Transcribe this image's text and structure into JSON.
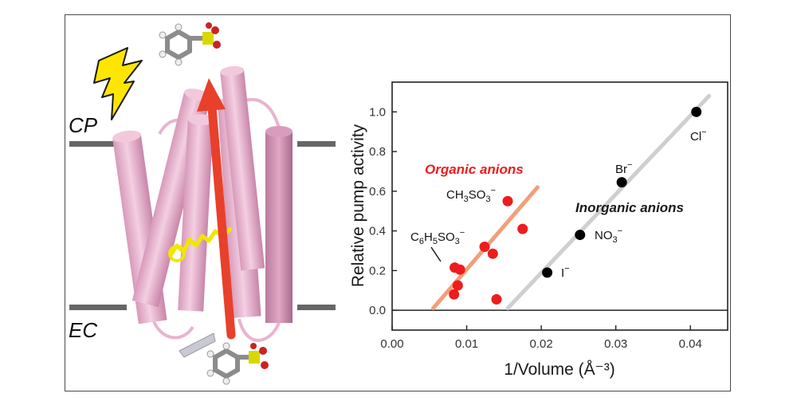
{
  "illustration": {
    "cp_label": "CP",
    "ec_label": "EC",
    "helix_color": "#e8b4cf",
    "arrow_color": "#e8402a",
    "bolt_color": "#ffe600"
  },
  "chart_data": {
    "type": "scatter",
    "xlabel": "1/Volume (Å⁻³)",
    "ylabel": "Relative pump activity",
    "xlim": [
      0.0,
      0.045
    ],
    "ylim": [
      -0.1,
      1.15
    ],
    "x_ticks": [
      "0.00",
      "0.01",
      "0.02",
      "0.03",
      "0.04"
    ],
    "y_ticks": [
      "0.0",
      "0.2",
      "0.4",
      "0.6",
      "0.8",
      "1.0"
    ],
    "y_tick_values": [
      0.0,
      0.2,
      0.4,
      0.6,
      0.8,
      1.0
    ],
    "x_tick_values": [
      0.0,
      0.01,
      0.02,
      0.03,
      0.04
    ],
    "zero_line": true,
    "series": [
      {
        "name": "Organic anions",
        "color": "#ee1c1c",
        "fit_color": "#f0a07a",
        "fit": {
          "x1": 0.0055,
          "y1": 0.01,
          "x2": 0.0195,
          "y2": 0.62
        },
        "points": [
          {
            "x": 0.0083,
            "y": 0.08
          },
          {
            "x": 0.0084,
            "y": 0.215
          },
          {
            "x": 0.0088,
            "y": 0.125
          },
          {
            "x": 0.0091,
            "y": 0.205
          },
          {
            "x": 0.0124,
            "y": 0.32
          },
          {
            "x": 0.0135,
            "y": 0.285
          },
          {
            "x": 0.014,
            "y": 0.055
          },
          {
            "x": 0.0155,
            "y": 0.55
          },
          {
            "x": 0.0175,
            "y": 0.41
          }
        ]
      },
      {
        "name": "Inorganic anions",
        "color": "#000000",
        "fit_color": "#cfcfcf",
        "fit": {
          "x1": 0.0155,
          "y1": 0.01,
          "x2": 0.0425,
          "y2": 1.08
        },
        "points": [
          {
            "x": 0.0208,
            "y": 0.19
          },
          {
            "x": 0.0252,
            "y": 0.38
          },
          {
            "x": 0.0308,
            "y": 0.645
          },
          {
            "x": 0.0408,
            "y": 1.0
          }
        ]
      }
    ],
    "point_labels": {
      "ch3so3": {
        "main": "CH",
        "sub1": "3",
        "mid": "SO",
        "sub2": "3",
        "sup": "−"
      },
      "c6h5so3": {
        "main": "C",
        "sub1": "6",
        "mid": "H",
        "sub2": "5",
        "end": "SO",
        "sub3": "3",
        "sup": "−"
      },
      "i": {
        "main": "I",
        "sup": "−"
      },
      "no3": {
        "main": "NO",
        "sub1": "3",
        "sup": "−"
      },
      "br": {
        "main": "Br",
        "sup": "−"
      },
      "cl": {
        "main": "Cl",
        "sup": "−"
      }
    }
  }
}
